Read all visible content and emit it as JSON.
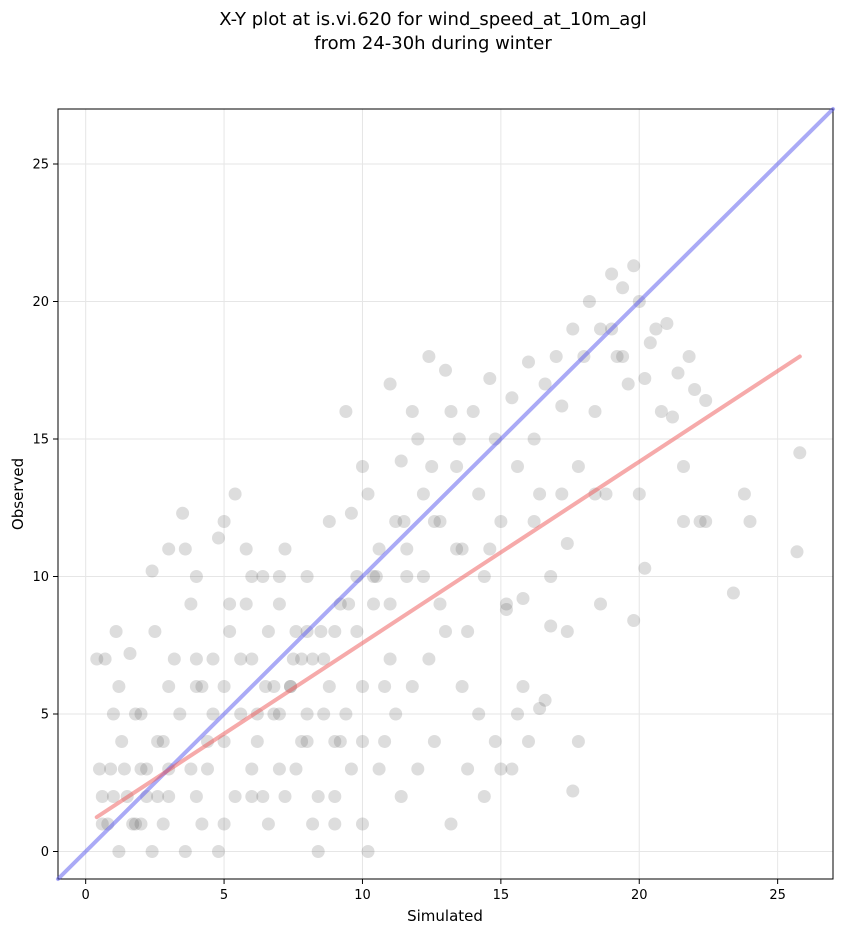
{
  "chart_data": {
    "type": "scatter",
    "title_lines": [
      "X-Y plot at is.vi.620 for wind_speed_at_10m_agl",
      "from 24-30h during winter"
    ],
    "xlabel": "Simulated",
    "ylabel": "Observed",
    "xlim": [
      -1,
      27
    ],
    "ylim": [
      -1,
      27
    ],
    "xticks": [
      0,
      5,
      10,
      15,
      20,
      25
    ],
    "yticks": [
      0,
      5,
      10,
      15,
      20,
      25
    ],
    "grid": true,
    "point_color": "#444444",
    "lines": [
      {
        "kind": "identity",
        "color": "#5555ee",
        "x": [
          -1,
          27
        ],
        "y": [
          -1,
          27
        ]
      },
      {
        "kind": "fit",
        "color": "#ee5555",
        "x": [
          0.4,
          25.8
        ],
        "y": [
          1.25,
          18.0
        ]
      }
    ],
    "points": [
      [
        0.4,
        7
      ],
      [
        0.7,
        7
      ],
      [
        0.5,
        3
      ],
      [
        0.6,
        2
      ],
      [
        0.8,
        1
      ],
      [
        0.9,
        3
      ],
      [
        1.0,
        5
      ],
      [
        1.1,
        8
      ],
      [
        1.2,
        6
      ],
      [
        1.3,
        4
      ],
      [
        1.5,
        2
      ],
      [
        1.6,
        7.2
      ],
      [
        1.7,
        1
      ],
      [
        1.8,
        5
      ],
      [
        2.0,
        3
      ],
      [
        2.2,
        2
      ],
      [
        2.4,
        10.2
      ],
      [
        2.5,
        8
      ],
      [
        2.6,
        4
      ],
      [
        2.8,
        1
      ],
      [
        3.0,
        11
      ],
      [
        3.2,
        7
      ],
      [
        3.5,
        12.3
      ],
      [
        3.6,
        11
      ],
      [
        3.8,
        9
      ],
      [
        4.0,
        10
      ],
      [
        4.2,
        6
      ],
      [
        4.4,
        3
      ],
      [
        4.6,
        5
      ],
      [
        4.8,
        11.4
      ],
      [
        5.0,
        12
      ],
      [
        5.2,
        9
      ],
      [
        5.4,
        13
      ],
      [
        5.6,
        7
      ],
      [
        5.8,
        11
      ],
      [
        6.0,
        10
      ],
      [
        6.2,
        4
      ],
      [
        6.4,
        2
      ],
      [
        6.6,
        8
      ],
      [
        6.8,
        5
      ],
      [
        7.0,
        10
      ],
      [
        7.2,
        11
      ],
      [
        7.4,
        6
      ],
      [
        7.6,
        3
      ],
      [
        7.8,
        7
      ],
      [
        8.0,
        10
      ],
      [
        8.2,
        1
      ],
      [
        8.4,
        0
      ],
      [
        8.6,
        5
      ],
      [
        8.8,
        12
      ],
      [
        9.0,
        8
      ],
      [
        9.2,
        4
      ],
      [
        9.4,
        16
      ],
      [
        9.6,
        12.3
      ],
      [
        9.8,
        10
      ],
      [
        10.0,
        14
      ],
      [
        10.2,
        13
      ],
      [
        10.4,
        9
      ],
      [
        10.6,
        11
      ],
      [
        10.8,
        6
      ],
      [
        11.0,
        17
      ],
      [
        11.2,
        12
      ],
      [
        11.4,
        14.2
      ],
      [
        11.6,
        10
      ],
      [
        11.8,
        16
      ],
      [
        12.0,
        15
      ],
      [
        12.2,
        13
      ],
      [
        12.4,
        18
      ],
      [
        12.6,
        12
      ],
      [
        12.8,
        9
      ],
      [
        13.0,
        17.5
      ],
      [
        13.2,
        16
      ],
      [
        13.4,
        14
      ],
      [
        13.6,
        11
      ],
      [
        13.8,
        8
      ],
      [
        14.0,
        16
      ],
      [
        14.2,
        13
      ],
      [
        14.4,
        10
      ],
      [
        14.6,
        17.2
      ],
      [
        14.8,
        15
      ],
      [
        15.0,
        12
      ],
      [
        15.2,
        9
      ],
      [
        15.4,
        16.5
      ],
      [
        15.6,
        14
      ],
      [
        15.8,
        6
      ],
      [
        16.0,
        17.8
      ],
      [
        16.2,
        15
      ],
      [
        16.4,
        13
      ],
      [
        16.6,
        17
      ],
      [
        16.8,
        10
      ],
      [
        17.0,
        18
      ],
      [
        17.2,
        16.2
      ],
      [
        17.4,
        8
      ],
      [
        17.6,
        19
      ],
      [
        17.8,
        14
      ],
      [
        18.0,
        18
      ],
      [
        18.2,
        20
      ],
      [
        18.4,
        16
      ],
      [
        18.6,
        19
      ],
      [
        18.8,
        13
      ],
      [
        19.0,
        21
      ],
      [
        19.2,
        18
      ],
      [
        19.4,
        20.5
      ],
      [
        19.6,
        17
      ],
      [
        19.8,
        21.3
      ],
      [
        20.0,
        20
      ],
      [
        20.2,
        17.2
      ],
      [
        20.4,
        18.5
      ],
      [
        20.6,
        19
      ],
      [
        20.8,
        16
      ],
      [
        21.0,
        19.2
      ],
      [
        21.2,
        15.8
      ],
      [
        21.4,
        17.4
      ],
      [
        21.6,
        14
      ],
      [
        21.8,
        18
      ],
      [
        22.0,
        16.8
      ],
      [
        22.2,
        12
      ],
      [
        22.4,
        16.4
      ],
      [
        23.4,
        9.4
      ],
      [
        23.8,
        13
      ],
      [
        24.0,
        12
      ],
      [
        25.7,
        10.9
      ],
      [
        25.8,
        14.5
      ],
      [
        20.2,
        10.3
      ],
      [
        19.8,
        8.4
      ],
      [
        18.6,
        9
      ],
      [
        17.6,
        2.2
      ],
      [
        17.8,
        4
      ],
      [
        16.4,
        5.2
      ],
      [
        15.6,
        5
      ],
      [
        15.0,
        3
      ],
      [
        14.4,
        2
      ],
      [
        13.8,
        3
      ],
      [
        13.2,
        1
      ],
      [
        12.6,
        4
      ],
      [
        12.0,
        3
      ],
      [
        11.4,
        2
      ],
      [
        10.8,
        4
      ],
      [
        10.2,
        0
      ],
      [
        9.6,
        3
      ],
      [
        9.0,
        1
      ],
      [
        8.4,
        2
      ],
      [
        7.8,
        4
      ],
      [
        7.2,
        2
      ],
      [
        6.6,
        1
      ],
      [
        6.0,
        3
      ],
      [
        5.4,
        2
      ],
      [
        4.8,
        0
      ],
      [
        4.2,
        1
      ],
      [
        3.6,
        0
      ],
      [
        3.0,
        2
      ],
      [
        2.4,
        0
      ],
      [
        1.8,
        1
      ],
      [
        1.2,
        0
      ],
      [
        0.6,
        1
      ],
      [
        2.2,
        3
      ],
      [
        2.8,
        4
      ],
      [
        3.4,
        5
      ],
      [
        4.0,
        6
      ],
      [
        4.6,
        7
      ],
      [
        5.2,
        8
      ],
      [
        5.8,
        9
      ],
      [
        6.4,
        10
      ],
      [
        7.0,
        9
      ],
      [
        7.6,
        8
      ],
      [
        8.2,
        7
      ],
      [
        8.8,
        6
      ],
      [
        9.4,
        5
      ],
      [
        10.0,
        4
      ],
      [
        10.6,
        3
      ],
      [
        11.2,
        5
      ],
      [
        11.8,
        6
      ],
      [
        12.4,
        7
      ],
      [
        13.0,
        8
      ],
      [
        13.6,
        6
      ],
      [
        14.2,
        5
      ],
      [
        14.8,
        4
      ],
      [
        15.4,
        3
      ],
      [
        16.0,
        4
      ],
      [
        16.6,
        5.5
      ],
      [
        1.4,
        3
      ],
      [
        2.6,
        2
      ],
      [
        3.8,
        3
      ],
      [
        5.0,
        4
      ],
      [
        6.2,
        5
      ],
      [
        7.4,
        6
      ],
      [
        8.6,
        7
      ],
      [
        9.8,
        8
      ],
      [
        11.0,
        9
      ],
      [
        12.2,
        10
      ],
      [
        13.4,
        11
      ],
      [
        14.6,
        11
      ],
      [
        4.4,
        4
      ],
      [
        5.6,
        5
      ],
      [
        6.8,
        6
      ],
      [
        8.0,
        8
      ],
      [
        9.2,
        9
      ],
      [
        10.4,
        10
      ],
      [
        11.6,
        11
      ],
      [
        12.8,
        12
      ],
      [
        2.0,
        5
      ],
      [
        3.0,
        6
      ],
      [
        4.0,
        7
      ],
      [
        5.0,
        6
      ],
      [
        6.0,
        7
      ],
      [
        7.0,
        5
      ],
      [
        8.0,
        5
      ],
      [
        9.0,
        4
      ],
      [
        10.0,
        6
      ],
      [
        11.0,
        7
      ],
      [
        1.0,
        2
      ],
      [
        2.0,
        1
      ],
      [
        3.0,
        3
      ],
      [
        4.0,
        2
      ],
      [
        5.0,
        1
      ],
      [
        6.0,
        2
      ],
      [
        7.0,
        3
      ],
      [
        8.0,
        4
      ],
      [
        9.0,
        2
      ],
      [
        10.0,
        1
      ],
      [
        6.5,
        6
      ],
      [
        7.5,
        7
      ],
      [
        8.5,
        8
      ],
      [
        9.5,
        9
      ],
      [
        10.5,
        10
      ],
      [
        11.5,
        12
      ],
      [
        12.5,
        14
      ],
      [
        13.5,
        15
      ],
      [
        16.2,
        12
      ],
      [
        17.2,
        13
      ],
      [
        18.4,
        13
      ],
      [
        19.0,
        19
      ],
      [
        19.4,
        18
      ],
      [
        20.0,
        13
      ],
      [
        22.4,
        12
      ],
      [
        21.6,
        12
      ],
      [
        16.8,
        8.2
      ],
      [
        17.4,
        11.2
      ],
      [
        15.8,
        9.2
      ],
      [
        15.2,
        8.8
      ]
    ]
  }
}
